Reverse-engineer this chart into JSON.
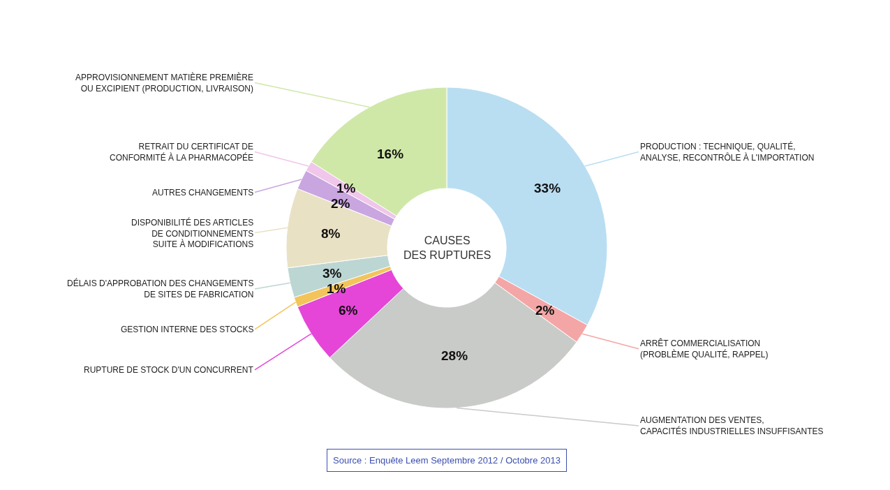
{
  "chart_data": {
    "type": "donut",
    "title": "CAUSES\nDES RUPTURES",
    "categories": [
      "PRODUCTION : TECHNIQUE, QUALITÉ,\nANALYSE, RECONTRÔLE À L'IMPORTATION",
      "ARRÊT COMMERCIALISATION\n(PROBLÈME QUALITÉ, RAPPEL)",
      "AUGMENTATION DES VENTES,\nCAPACITÉS INDUSTRIELLES INSUFFISANTES",
      "RUPTURE DE STOCK D'UN CONCURRENT",
      "GESTION INTERNE DES STOCKS",
      "DÉLAIS D'APPROBATION DES CHANGEMENTS\nDE SITES DE FABRICATION",
      "DISPONIBILITÉ DES ARTICLES\nDE CONDITIONNEMENTS\nSUITE À MODIFICATIONS",
      "AUTRES CHANGEMENTS",
      "RETRAIT DU CERTIFICAT DE\nCONFORMITÉ À LA PHARMACOPÉE",
      "APPROVISIONNEMENT MATIÈRE PREMIÈRE\nOU EXCIPIENT (PRODUCTION, LIVRAISON)"
    ],
    "values": [
      33,
      2,
      28,
      6,
      1,
      3,
      8,
      2,
      1,
      16
    ],
    "value_labels": [
      "33%",
      "2%",
      "28%",
      "6%",
      "1%",
      "3%",
      "8%",
      "2%",
      "1%",
      "16%"
    ],
    "colors": [
      "#b9def2",
      "#f4a6a6",
      "#c9cbc8",
      "#e546d8",
      "#f3c45a",
      "#bcd6d3",
      "#e9e1c4",
      "#c9a6e0",
      "#f0c6ea",
      "#cfe8a8"
    ],
    "legend": false,
    "annotations": [
      "Source : Enquête Leem Septembre 2012 / Octobre 2013"
    ]
  }
}
